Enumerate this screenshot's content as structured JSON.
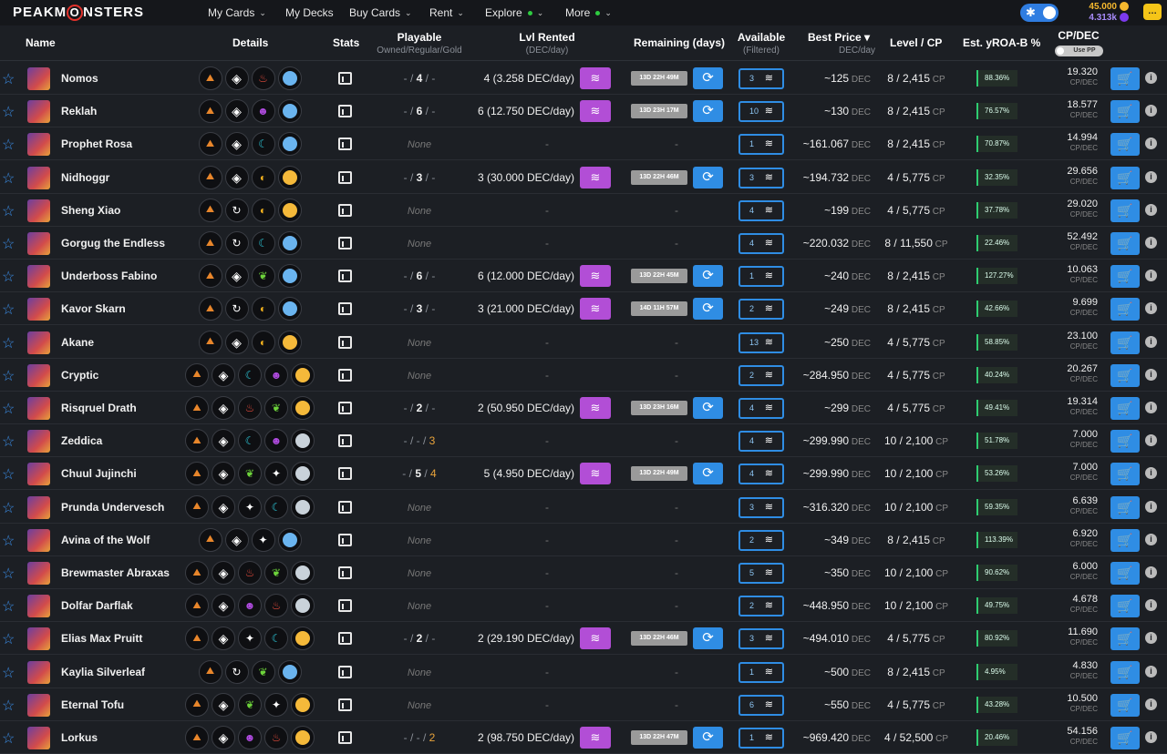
{
  "header": {
    "logo": "PEAKMONSTERS",
    "nav": [
      {
        "label": "My Cards",
        "chevron": true,
        "dot": false,
        "x": 228
      },
      {
        "label": "My Decks",
        "chevron": false,
        "dot": false,
        "x": 313
      },
      {
        "label": "Buy Cards",
        "chevron": true,
        "dot": false,
        "x": 383
      },
      {
        "label": "Rent",
        "chevron": true,
        "dot": false,
        "x": 471
      },
      {
        "label": "Explore",
        "chevron": true,
        "dot": true,
        "x": 532
      },
      {
        "label": "More",
        "chevron": true,
        "dot": true,
        "x": 620
      }
    ],
    "balance_dec": "45.000",
    "balance_sps": "4.313k",
    "theme_icon": "sun-icon",
    "chat_icon": "chat-icon"
  },
  "columns": {
    "name": "Name",
    "details": "Details",
    "stats": "Stats",
    "playable": "Playable",
    "playable_sub": "Owned/Regular/Gold",
    "rented": "Lvl Rented",
    "rented_sub": "(DEC/day)",
    "remaining": "Remaining (days)",
    "available": "Available",
    "available_sub": "(Filtered)",
    "best_price": "Best Price",
    "best_price_sub": "DEC/day",
    "level_cp": "Level / CP",
    "yroa": "Est. yROA-B %",
    "cp_dec": "CP/DEC",
    "use_pp": "Use PP"
  },
  "units": {
    "dec": "DEC",
    "cp": "CP",
    "cp_dec": "CP/DEC"
  },
  "rows": [
    {
      "name": "Nomos",
      "icons": [
        "edition",
        "rarity",
        "fire",
        "blue"
      ],
      "playable": {
        "owned": "-",
        "regular": "4",
        "gold": "-"
      },
      "rented": "4 (3.258 DEC/day)",
      "remaining": "13D 22H 49M",
      "available": "3",
      "price": "~125",
      "level": "8 / 2,415",
      "yroa": "88.36%",
      "cpdec": "19.320"
    },
    {
      "name": "Reklah",
      "icons": [
        "edition",
        "rarity",
        "death",
        "blue"
      ],
      "playable": {
        "owned": "-",
        "regular": "6",
        "gold": "-"
      },
      "rented": "6 (12.750 DEC/day)",
      "remaining": "13D 23H 17M",
      "available": "10",
      "price": "~130",
      "level": "8 / 2,415",
      "yroa": "76.57%",
      "cpdec": "18.577"
    },
    {
      "name": "Prophet Rosa",
      "icons": [
        "edition",
        "rarity",
        "water",
        "blue"
      ],
      "playable": null,
      "rented": null,
      "remaining": null,
      "available": "1",
      "price": "~161.067",
      "level": "8 / 2,415",
      "yroa": "70.87%",
      "cpdec": "14.994"
    },
    {
      "name": "Nidhoggr",
      "icons": [
        "edition",
        "rarity",
        "dragon",
        "gold"
      ],
      "playable": {
        "owned": "-",
        "regular": "3",
        "gold": "-"
      },
      "rented": "3 (30.000 DEC/day)",
      "remaining": "13D 22H 46M",
      "available": "3",
      "price": "~194.732",
      "level": "4 / 5,775",
      "yroa": "32.35%",
      "cpdec": "29.656"
    },
    {
      "name": "Sheng Xiao",
      "icons": [
        "edition",
        "neutral",
        "dragon",
        "gold"
      ],
      "playable": null,
      "rented": null,
      "remaining": null,
      "available": "4",
      "price": "~199",
      "level": "4 / 5,775",
      "yroa": "37.78%",
      "cpdec": "29.020"
    },
    {
      "name": "Gorgug the Endless",
      "icons": [
        "edition",
        "neutral",
        "water",
        "blue"
      ],
      "playable": null,
      "rented": null,
      "remaining": null,
      "available": "4",
      "price": "~220.032",
      "level": "8 / 11,550",
      "yroa": "22.46%",
      "cpdec": "52.492"
    },
    {
      "name": "Underboss Fabino",
      "icons": [
        "edition",
        "rarity",
        "earth",
        "blue"
      ],
      "playable": {
        "owned": "-",
        "regular": "6",
        "gold": "-"
      },
      "rented": "6 (12.000 DEC/day)",
      "remaining": "13D 22H 45M",
      "available": "1",
      "price": "~240",
      "level": "8 / 2,415",
      "yroa": "127.27%",
      "cpdec": "10.063"
    },
    {
      "name": "Kavor Skarn",
      "icons": [
        "edition",
        "neutral",
        "dragon",
        "blue"
      ],
      "playable": {
        "owned": "-",
        "regular": "3",
        "gold": "-"
      },
      "rented": "3 (21.000 DEC/day)",
      "remaining": "14D 11H 57M",
      "available": "2",
      "price": "~249",
      "level": "8 / 2,415",
      "yroa": "42.66%",
      "cpdec": "9.699"
    },
    {
      "name": "Akane",
      "icons": [
        "edition",
        "rarity",
        "dragon",
        "gold"
      ],
      "playable": null,
      "rented": null,
      "remaining": null,
      "available": "13",
      "price": "~250",
      "level": "4 / 5,775",
      "yroa": "58.85%",
      "cpdec": "23.100"
    },
    {
      "name": "Cryptic",
      "icons": [
        "edition",
        "rarity",
        "water",
        "death",
        "gold"
      ],
      "playable": null,
      "rented": null,
      "remaining": null,
      "available": "2",
      "price": "~284.950",
      "level": "4 / 5,775",
      "yroa": "40.24%",
      "cpdec": "20.267"
    },
    {
      "name": "Risqruel Drath",
      "icons": [
        "edition",
        "rarity",
        "fire",
        "earth",
        "gold"
      ],
      "playable": {
        "owned": "-",
        "regular": "2",
        "gold": "-"
      },
      "rented": "2 (50.950 DEC/day)",
      "remaining": "13D 23H 16M",
      "available": "4",
      "price": "~299",
      "level": "4 / 5,775",
      "yroa": "49.41%",
      "cpdec": "19.314"
    },
    {
      "name": "Zeddica",
      "icons": [
        "edition",
        "rarity",
        "water",
        "death",
        "silver"
      ],
      "playable": {
        "owned": "-",
        "regular": "-",
        "gold": "3",
        "gold_color": true
      },
      "rented": null,
      "remaining": null,
      "available": "4",
      "price": "~299.990",
      "level": "10 / 2,100",
      "yroa": "51.78%",
      "cpdec": "7.000"
    },
    {
      "name": "Chuul Jujinchi",
      "icons": [
        "edition",
        "rarity",
        "earth",
        "life",
        "silver"
      ],
      "playable": {
        "owned": "-",
        "regular": "5",
        "gold": "4",
        "gold_color": true
      },
      "rented": "5 (4.950 DEC/day)",
      "remaining": "13D 22H 49M",
      "available": "4",
      "price": "~299.990",
      "level": "10 / 2,100",
      "yroa": "53.26%",
      "cpdec": "7.000"
    },
    {
      "name": "Prunda Undervesch",
      "icons": [
        "edition",
        "rarity",
        "life",
        "water",
        "silver"
      ],
      "playable": null,
      "rented": null,
      "remaining": null,
      "available": "3",
      "price": "~316.320",
      "level": "10 / 2,100",
      "yroa": "59.35%",
      "cpdec": "6.639"
    },
    {
      "name": "Avina of the Wolf",
      "icons": [
        "edition",
        "rarity",
        "life",
        "blue"
      ],
      "playable": null,
      "rented": null,
      "remaining": null,
      "available": "2",
      "price": "~349",
      "level": "8 / 2,415",
      "yroa": "113.39%",
      "cpdec": "6.920"
    },
    {
      "name": "Brewmaster Abraxas",
      "icons": [
        "edition",
        "rarity",
        "fire",
        "earth",
        "silver"
      ],
      "playable": null,
      "rented": null,
      "remaining": null,
      "available": "5",
      "price": "~350",
      "level": "10 / 2,100",
      "yroa": "90.62%",
      "cpdec": "6.000"
    },
    {
      "name": "Dolfar Darflak",
      "icons": [
        "edition",
        "rarity",
        "death",
        "fire",
        "silver"
      ],
      "playable": null,
      "rented": null,
      "remaining": null,
      "available": "2",
      "price": "~448.950",
      "level": "10 / 2,100",
      "yroa": "49.75%",
      "cpdec": "4.678"
    },
    {
      "name": "Elias Max Pruitt",
      "icons": [
        "edition",
        "rarity",
        "life",
        "water",
        "gold"
      ],
      "playable": {
        "owned": "-",
        "regular": "2",
        "gold": "-"
      },
      "rented": "2 (29.190 DEC/day)",
      "remaining": "13D 22H 46M",
      "available": "3",
      "price": "~494.010",
      "level": "4 / 5,775",
      "yroa": "80.92%",
      "cpdec": "11.690"
    },
    {
      "name": "Kaylia Silverleaf",
      "icons": [
        "edition",
        "neutral",
        "earth",
        "blue"
      ],
      "playable": null,
      "rented": null,
      "remaining": null,
      "available": "1",
      "price": "~500",
      "level": "8 / 2,415",
      "yroa": "4.95%",
      "cpdec": "4.830"
    },
    {
      "name": "Eternal Tofu",
      "icons": [
        "edition",
        "rarity",
        "earth",
        "life",
        "gold"
      ],
      "playable": null,
      "rented": null,
      "remaining": null,
      "available": "6",
      "price": "~550",
      "level": "4 / 5,775",
      "yroa": "43.28%",
      "cpdec": "10.500"
    },
    {
      "name": "Lorkus",
      "icons": [
        "edition",
        "rarity",
        "death",
        "fire",
        "gold"
      ],
      "playable": {
        "owned": "-",
        "regular": "-",
        "gold": "2",
        "gold_color": true
      },
      "rented": "2 (98.750 DEC/day)",
      "remaining": "13D 22H 47M",
      "available": "1",
      "price": "~969.420",
      "level": "4 / 52,500",
      "yroa": "20.46%",
      "cpdec": "54.156"
    }
  ],
  "none_label": "None",
  "dash": "-"
}
